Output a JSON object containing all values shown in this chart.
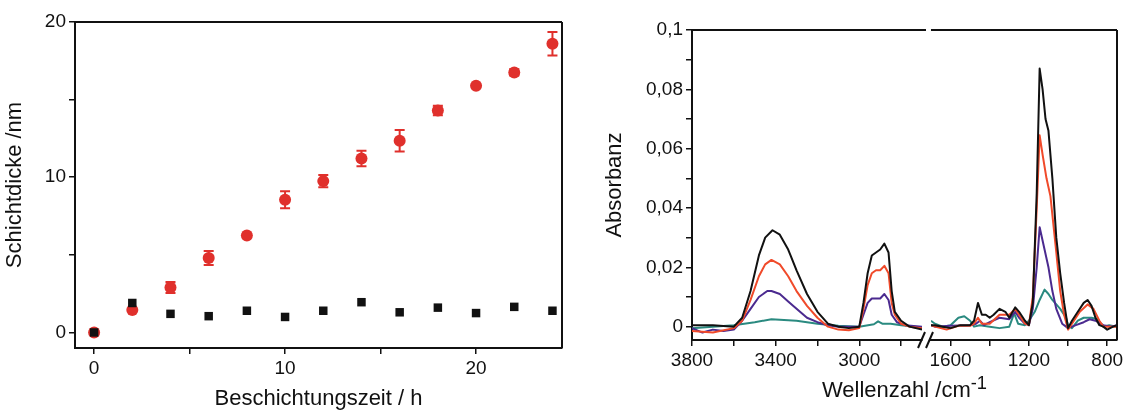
{
  "chart_data": [
    {
      "type": "scatter",
      "xlabel": "Beschichtungszeit / h",
      "ylabel": "Schichtdicke /nm",
      "xlim": [
        -1,
        24.5
      ],
      "ylim": [
        -1,
        20
      ],
      "xticks": [
        0,
        {
          "value": 5,
          "label": null
        },
        10,
        {
          "value": 15,
          "label": null
        },
        20
      ],
      "yticks": [
        0,
        {
          "value": 5,
          "label": null
        },
        10,
        {
          "value": 15,
          "label": null
        },
        20
      ],
      "grid": false,
      "legend": false,
      "x": [
        0,
        2,
        4,
        6,
        8,
        10,
        12,
        14,
        16,
        18,
        20,
        22,
        24
      ],
      "series": [
        {
          "color": "#111111",
          "marker": "square",
          "values": [
            0,
            1.9,
            1.2,
            1.05,
            1.4,
            1.0,
            1.4,
            1.95,
            1.3,
            1.6,
            1.25,
            1.65,
            1.4
          ]
        },
        {
          "color": "#e0302c",
          "marker": "circle",
          "values": [
            0,
            1.45,
            2.9,
            4.8,
            6.25,
            8.55,
            9.75,
            11.2,
            12.35,
            14.3,
            15.9,
            16.75,
            18.6
          ],
          "errors": [
            null,
            null,
            0.35,
            0.45,
            null,
            0.55,
            0.4,
            0.5,
            0.7,
            0.3,
            null,
            0.2,
            0.75
          ]
        }
      ]
    },
    {
      "type": "line",
      "xlabel": "Wellenzahl /cm$^{-1}$",
      "ylabel": "Absorbanz",
      "xlim": [
        3800,
        2700
      ],
      "ylim": [
        -0.0045,
        0.1
      ],
      "xticks": [
        3800,
        {
          "value": 3600,
          "label": null
        },
        3400,
        {
          "value": 3200,
          "label": null
        },
        3000,
        {
          "value": 2800,
          "label": null
        }
      ],
      "yticks": [
        0,
        {
          "value": 0.01,
          "label": null
        },
        {
          "value": 0.02,
          "label": "0,02"
        },
        {
          "value": 0.03,
          "label": null
        },
        {
          "value": 0.04,
          "label": "0,04"
        },
        {
          "value": 0.05,
          "label": null
        },
        {
          "value": 0.06,
          "label": "0,06"
        },
        {
          "value": 0.07,
          "label": null
        },
        {
          "value": 0.08,
          "label": "0,08"
        },
        {
          "value": 0.09,
          "label": null
        },
        {
          "value": 0.1,
          "label": "0,1"
        }
      ],
      "grid": false,
      "legend": false,
      "marker": "none",
      "line_style": "solid",
      "series": [
        {
          "color": "#111111",
          "x": [
            3800,
            3700,
            3600,
            3560,
            3520,
            3480,
            3450,
            3415,
            3380,
            3340,
            3300,
            3250,
            3200,
            3150,
            3100,
            3050,
            3000,
            2980,
            2960,
            2940,
            2920,
            2900,
            2880,
            2860,
            2845,
            2830,
            2800,
            2760,
            2700
          ],
          "values": [
            0.0005,
            0.0005,
            0,
            0.003,
            0.012,
            0.024,
            0.03,
            0.0325,
            0.031,
            0.026,
            0.019,
            0.011,
            0.005,
            0.001,
            0,
            -0.0005,
            0,
            0.008,
            0.018,
            0.024,
            0.025,
            0.026,
            0.028,
            0.025,
            0.012,
            0.005,
            0.002,
            0,
            -0.001
          ]
        },
        {
          "color": "#f04a2a",
          "x": [
            3800,
            3700,
            3600,
            3560,
            3520,
            3480,
            3450,
            3420,
            3380,
            3340,
            3300,
            3250,
            3200,
            3150,
            3100,
            3050,
            3000,
            2980,
            2960,
            2940,
            2920,
            2900,
            2880,
            2860,
            2845,
            2830,
            2800,
            2760,
            2700
          ],
          "values": [
            -0.0015,
            -0.002,
            -0.0005,
            0.002,
            0.009,
            0.017,
            0.021,
            0.0225,
            0.021,
            0.017,
            0.012,
            0.007,
            0.003,
            0,
            -0.001,
            -0.0012,
            -0.0005,
            0.006,
            0.014,
            0.018,
            0.019,
            0.019,
            0.0205,
            0.018,
            0.008,
            0.004,
            0.001,
            0,
            -0.0005
          ]
        },
        {
          "color": "#4b2a8f",
          "x": [
            3800,
            3750,
            3700,
            3650,
            3600,
            3560,
            3520,
            3480,
            3440,
            3420,
            3380,
            3340,
            3300,
            3250,
            3200,
            3150,
            3100,
            3000,
            2980,
            2960,
            2940,
            2900,
            2880,
            2860,
            2845,
            2820,
            2780,
            2700
          ],
          "values": [
            -0.0005,
            -0.002,
            -0.001,
            -0.0015,
            -0.001,
            0.002,
            0.006,
            0.01,
            0.012,
            0.012,
            0.011,
            0.0085,
            0.006,
            0.003,
            0.0015,
            0.0005,
            0,
            0,
            0.004,
            0.008,
            0.0095,
            0.0095,
            0.011,
            0.009,
            0.004,
            0.0015,
            0.0005,
            0
          ]
        },
        {
          "color": "#2a8a80",
          "x": [
            3800,
            3700,
            3600,
            3500,
            3420,
            3300,
            3200,
            3100,
            3000,
            2930,
            2910,
            2890,
            2850,
            2800,
            2700
          ],
          "values": [
            -0.0005,
            0,
            0.0005,
            0.0015,
            0.0025,
            0.002,
            0.001,
            0.0003,
            0,
            0.0008,
            0.0018,
            0.001,
            0.001,
            0.0005,
            -0.0003
          ]
        }
      ]
    },
    {
      "type": "line",
      "xlim": [
        1700,
        750
      ],
      "ylim": [
        -0.0045,
        0.1
      ],
      "xticks": [
        1600,
        {
          "value": 1400,
          "label": null
        },
        1200,
        {
          "value": 1000,
          "label": null
        },
        800
      ],
      "tick_labels": "x",
      "grid": false,
      "legend": false,
      "marker": "none",
      "line_style": "solid",
      "series": [
        {
          "color": "#111111",
          "x": [
            1700,
            1680,
            1640,
            1600,
            1550,
            1500,
            1480,
            1460,
            1440,
            1420,
            1400,
            1380,
            1350,
            1320,
            1300,
            1270,
            1250,
            1220,
            1200,
            1180,
            1160,
            1145,
            1130,
            1115,
            1100,
            1080,
            1060,
            1040,
            1020,
            1000,
            980,
            950,
            920,
            900,
            880,
            860,
            840,
            820,
            800,
            770,
            750
          ],
          "values": [
            0.0005,
            0.0005,
            0,
            -0.0005,
            0.0005,
            0.0005,
            0.002,
            0.008,
            0.004,
            0.004,
            0.003,
            0.004,
            0.006,
            0.005,
            0.003,
            0.0065,
            0.005,
            0.002,
            0.0005,
            0.008,
            0.045,
            0.087,
            0.08,
            0.07,
            0.066,
            0.05,
            0.03,
            0.018,
            0.008,
            -0.0005,
            0.002,
            0.005,
            0.008,
            0.009,
            0.007,
            0.003,
            0.0005,
            0,
            -0.001,
            0,
            0.0005
          ]
        },
        {
          "color": "#f04a2a",
          "x": [
            1700,
            1680,
            1620,
            1560,
            1500,
            1480,
            1460,
            1440,
            1400,
            1350,
            1300,
            1270,
            1250,
            1220,
            1200,
            1180,
            1160,
            1145,
            1130,
            1110,
            1090,
            1060,
            1040,
            1020,
            1000,
            970,
            940,
            900,
            870,
            840,
            820,
            780,
            750
          ],
          "values": [
            0.0005,
            0,
            -0.001,
            0.0003,
            0.0003,
            0.001,
            0.003,
            0.001,
            0.001,
            0.004,
            0.004,
            0.006,
            0.004,
            0.001,
            0.0005,
            0.01,
            0.04,
            0.0645,
            0.058,
            0.05,
            0.044,
            0.025,
            0.012,
            0.004,
            -0.001,
            0.002,
            0.005,
            0.0075,
            0.006,
            0.002,
            0,
            0,
            0
          ]
        },
        {
          "color": "#4b2a8f",
          "x": [
            1700,
            1680,
            1600,
            1500,
            1470,
            1450,
            1430,
            1400,
            1350,
            1300,
            1270,
            1250,
            1220,
            1200,
            1180,
            1160,
            1145,
            1120,
            1100,
            1080,
            1060,
            1030,
            1000,
            960,
            920,
            890,
            860,
            820,
            780,
            750
          ],
          "values": [
            0.0005,
            0,
            0.0003,
            0.0005,
            0.001,
            0.002,
            0.0005,
            0.0015,
            0.003,
            0.0025,
            0.005,
            0.003,
            0.001,
            0.0005,
            0.006,
            0.02,
            0.0335,
            0.026,
            0.02,
            0.012,
            0.006,
            0.001,
            -0.0005,
            0.0005,
            0.0015,
            0.0025,
            0.002,
            0.0005,
            0,
            0.0005
          ]
        },
        {
          "color": "#2a8a80",
          "x": [
            1700,
            1680,
            1640,
            1600,
            1560,
            1530,
            1500,
            1480,
            1450,
            1400,
            1350,
            1300,
            1275,
            1255,
            1220,
            1200,
            1170,
            1145,
            1120,
            1100,
            1080,
            1040,
            1010,
            1000,
            980,
            950,
            920,
            880,
            850,
            820,
            790,
            750
          ],
          "values": [
            0.002,
            0.001,
            0,
            0.0005,
            0.003,
            0.0035,
            0.002,
            0,
            0.0005,
            0,
            -0.0005,
            0,
            0.0045,
            0.001,
            0.0005,
            0.002,
            0.005,
            0.009,
            0.0125,
            0.011,
            0.009,
            0.006,
            0.003,
            0.0005,
            -0.0005,
            0.002,
            0.003,
            0.003,
            0.0025,
            0,
            0.0005,
            0
          ]
        }
      ]
    }
  ]
}
